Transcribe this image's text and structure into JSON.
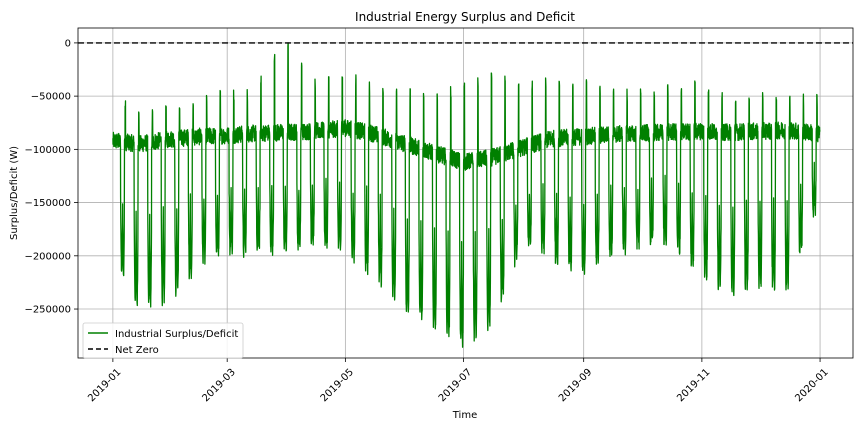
{
  "chart_data": {
    "type": "line",
    "title": "Industrial Energy Surplus and Deficit",
    "xlabel": "Time",
    "ylabel": "Surplus/Deficit (W)",
    "ylim": [
      -296000,
      14000
    ],
    "xlim": [
      "2018-12-14",
      "2020-01-18"
    ],
    "grid": true,
    "legend_position": "lower-left",
    "x_ticks": [
      "2019-01",
      "2019-03",
      "2019-05",
      "2019-07",
      "2019-09",
      "2019-11",
      "2020-01"
    ],
    "y_ticks": [
      0,
      -50000,
      -100000,
      -150000,
      -200000,
      -250000
    ],
    "y_tick_labels": [
      "0",
      "−50000",
      "−100000",
      "−150000",
      "−200000",
      "−250000"
    ],
    "series": [
      {
        "name": "Industrial Surplus/Deficit",
        "color": "#008000",
        "style": "solid",
        "profile_dates": [
          "2019-01-01",
          "2019-01-15",
          "2019-02-01",
          "2019-02-15",
          "2019-03-01",
          "2019-03-15",
          "2019-03-31",
          "2019-04-15",
          "2019-05-01",
          "2019-05-15",
          "2019-06-01",
          "2019-06-15",
          "2019-07-01",
          "2019-07-15",
          "2019-08-01",
          "2019-08-15",
          "2019-09-01",
          "2019-09-15",
          "2019-10-01",
          "2019-10-15",
          "2019-11-01",
          "2019-11-15",
          "2019-12-01",
          "2019-12-15",
          "2019-12-31"
        ],
        "weekday_baseline": [
          -92000,
          -95000,
          -90000,
          -88000,
          -87000,
          -85000,
          -84000,
          -83000,
          -80000,
          -85000,
          -95000,
          -103000,
          -112000,
          -108000,
          -98000,
          -90000,
          -88000,
          -86000,
          -85000,
          -84000,
          -83000,
          -84000,
          -83000,
          -82000,
          -85000
        ],
        "weekend_min": [
          -195000,
          -250000,
          -235000,
          -205000,
          -195000,
          -195000,
          -195000,
          -185000,
          -195000,
          -215000,
          -250000,
          -265000,
          -280000,
          -265000,
          -185000,
          -200000,
          -215000,
          -195000,
          -190000,
          -185000,
          -215000,
          -235000,
          -225000,
          -230000,
          -150000
        ],
        "spike_max": [
          -58000,
          -75000,
          -70000,
          -60000,
          -55000,
          -55000,
          0,
          -45000,
          -35000,
          -50000,
          -55000,
          -55000,
          -50000,
          -40000,
          -45000,
          -45000,
          -45000,
          -55000,
          -55000,
          -50000,
          -45000,
          -60000,
          -55000,
          -60000,
          -60000
        ]
      },
      {
        "name": "Net Zero",
        "color": "#000000",
        "style": "dashed",
        "values": [
          0,
          0
        ]
      }
    ]
  }
}
